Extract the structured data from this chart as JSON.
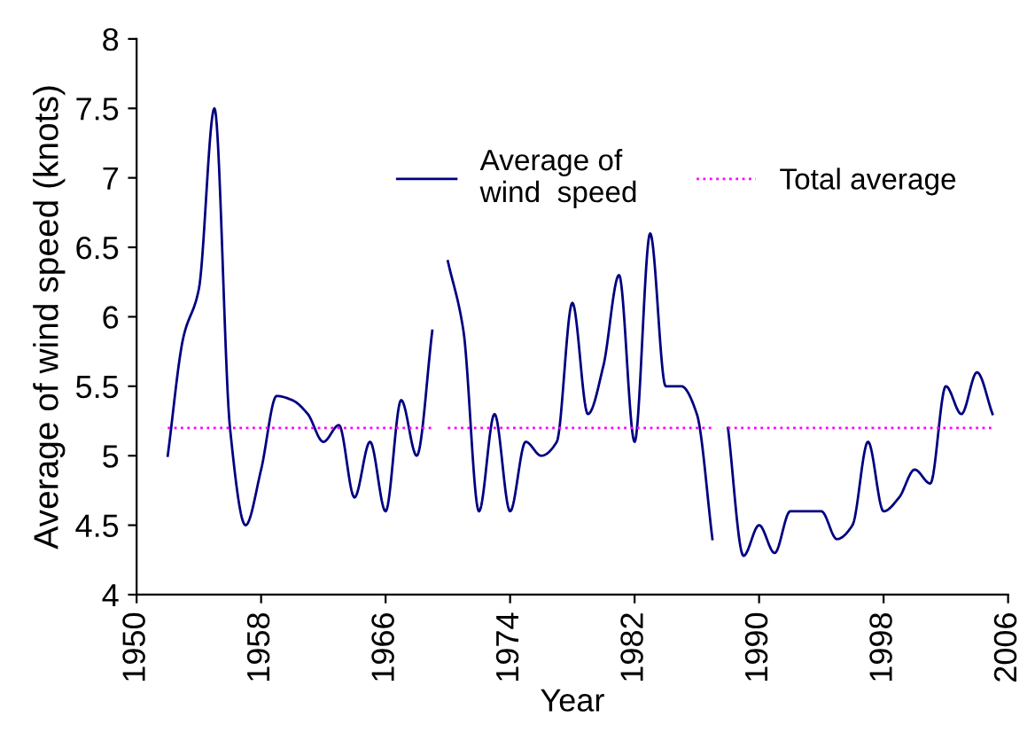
{
  "chart_data": {
    "type": "line",
    "xlabel": "Year",
    "ylabel": "Average of wind speed (knots)",
    "x": [
      1952,
      1953,
      1954,
      1955,
      1956,
      1957,
      1958,
      1959,
      1960,
      1961,
      1962,
      1963,
      1964,
      1965,
      1966,
      1967,
      1968,
      1969,
      1969.5,
      1970,
      1971,
      1972,
      1973,
      1974,
      1975,
      1976,
      1977,
      1978,
      1979,
      1980,
      1981,
      1982,
      1983,
      1984,
      1985,
      1986,
      1987,
      1987.5,
      1988,
      1989,
      1990,
      1991,
      1992,
      1993,
      1994,
      1995,
      1996,
      1997,
      1998,
      1999,
      2000,
      2001,
      2002,
      2003,
      2004,
      2005
    ],
    "series": [
      {
        "name": "Average of\nwind  speed",
        "color": "#000080",
        "line_style": "solid",
        "values": [
          5.0,
          5.85,
          6.2,
          7.5,
          5.2,
          4.5,
          4.9,
          5.43,
          5.4,
          5.3,
          5.1,
          5.22,
          4.7,
          5.1,
          4.6,
          5.4,
          5.0,
          5.9,
          null,
          6.4,
          5.9,
          4.6,
          5.3,
          4.6,
          5.1,
          5.0,
          5.1,
          6.1,
          5.3,
          5.65,
          6.3,
          5.1,
          6.6,
          5.5,
          5.5,
          5.3,
          4.4,
          null,
          5.2,
          4.28,
          4.5,
          4.3,
          4.6,
          4.6,
          4.6,
          4.4,
          4.5,
          5.1,
          4.6,
          4.7,
          4.9,
          4.8,
          5.5,
          5.3,
          5.6,
          5.3
        ]
      },
      {
        "name": "Total average",
        "color": "#ff00ff",
        "line_style": "dotted",
        "values": [
          5.2,
          5.2,
          5.2,
          5.2,
          5.2,
          5.2,
          5.2,
          5.2,
          5.2,
          5.2,
          5.2,
          5.2,
          5.2,
          5.2,
          5.2,
          5.2,
          5.2,
          5.2,
          null,
          5.2,
          5.2,
          5.2,
          5.2,
          5.2,
          5.2,
          5.2,
          5.2,
          5.2,
          5.2,
          5.2,
          5.2,
          5.2,
          5.2,
          5.2,
          5.2,
          5.2,
          5.2,
          null,
          5.2,
          5.2,
          5.2,
          5.2,
          5.2,
          5.2,
          5.2,
          5.2,
          5.2,
          5.2,
          5.2,
          5.2,
          5.2,
          5.2,
          5.2,
          5.2,
          5.2,
          5.2
        ]
      }
    ],
    "xlim": [
      1950,
      2006
    ],
    "xticks": [
      1950,
      1958,
      1966,
      1974,
      1982,
      1990,
      1998,
      2006
    ],
    "ylim": [
      4,
      8
    ],
    "yticks": [
      4,
      4.5,
      5,
      5.5,
      6,
      6.5,
      7,
      7.5,
      8
    ],
    "grid": false,
    "legend": "top",
    "marker": "none"
  }
}
